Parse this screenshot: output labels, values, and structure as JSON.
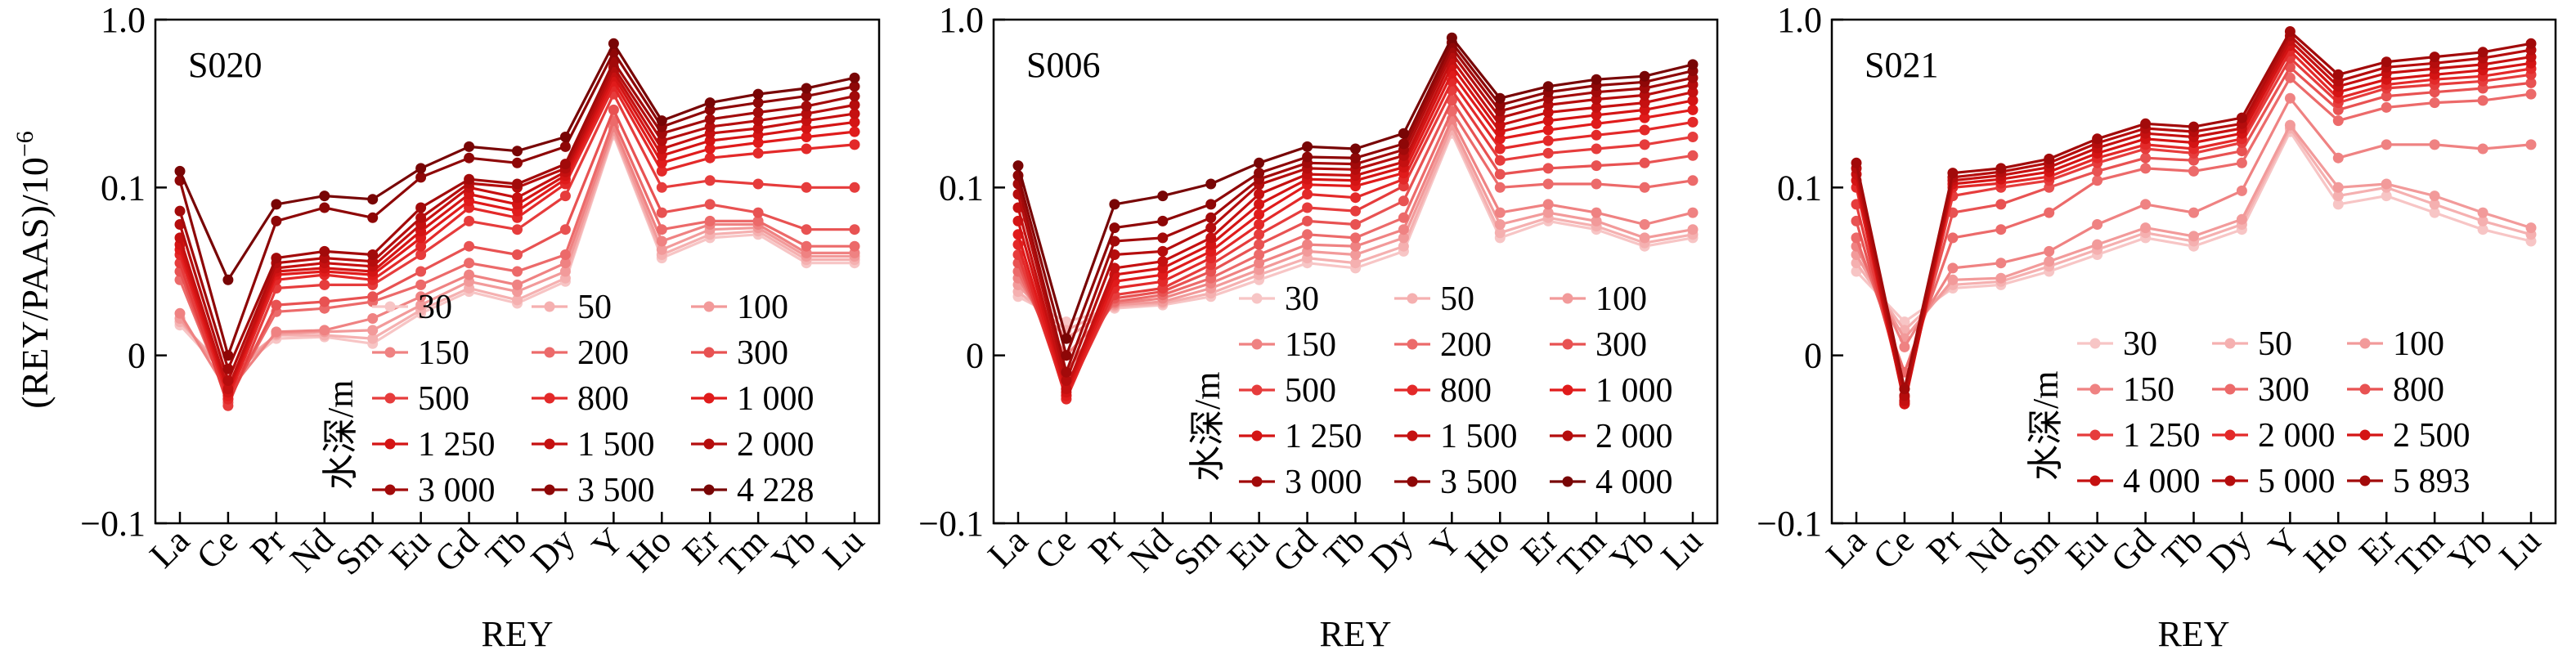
{
  "figure": {
    "ylabel": "(REY/PAAS)/10",
    "ylabel_exponent": "−6"
  },
  "chart_data": [
    {
      "type": "line",
      "panel_label": "S020",
      "xlabel": "REY",
      "categories": [
        "La",
        "Ce",
        "Pr",
        "Nd",
        "Sm",
        "Eu",
        "Gd",
        "Tb",
        "Dy",
        "Y",
        "Ho",
        "Er",
        "Tm",
        "Yb",
        "Lu"
      ],
      "yticks": [
        "1.0",
        "0.1",
        "0",
        "−0.1"
      ],
      "legend_title": "水深/m",
      "series": [
        {
          "name": "30",
          "color": "#f7c5c5",
          "values": [
            0.018,
            -0.013,
            0.01,
            0.011,
            0.007,
            0.025,
            0.038,
            0.031,
            0.044,
            0.205,
            0.058,
            0.07,
            0.072,
            0.055,
            0.055
          ]
        },
        {
          "name": "50",
          "color": "#f5b0b0",
          "values": [
            0.02,
            -0.01,
            0.012,
            0.012,
            0.01,
            0.027,
            0.04,
            0.033,
            0.046,
            0.21,
            0.06,
            0.072,
            0.074,
            0.057,
            0.057
          ]
        },
        {
          "name": "100",
          "color": "#f29a9a",
          "values": [
            0.022,
            -0.015,
            0.013,
            0.014,
            0.015,
            0.03,
            0.044,
            0.038,
            0.05,
            0.218,
            0.063,
            0.075,
            0.076,
            0.059,
            0.059
          ]
        },
        {
          "name": "150",
          "color": "#ef8282",
          "values": [
            0.025,
            -0.022,
            0.014,
            0.015,
            0.022,
            0.035,
            0.048,
            0.042,
            0.055,
            0.23,
            0.068,
            0.078,
            0.078,
            0.061,
            0.061
          ]
        },
        {
          "name": "200",
          "color": "#ec6a6a",
          "values": [
            0.045,
            -0.026,
            0.026,
            0.028,
            0.032,
            0.042,
            0.055,
            0.05,
            0.06,
            0.25,
            0.075,
            0.08,
            0.08,
            0.065,
            0.065
          ]
        },
        {
          "name": "300",
          "color": "#e85252",
          "values": [
            0.05,
            -0.028,
            0.03,
            0.032,
            0.035,
            0.05,
            0.065,
            0.06,
            0.075,
            0.29,
            0.085,
            0.09,
            0.085,
            0.075,
            0.075
          ]
        },
        {
          "name": "500",
          "color": "#e63c3c",
          "values": [
            0.055,
            -0.03,
            0.04,
            0.042,
            0.042,
            0.06,
            0.08,
            0.075,
            0.095,
            0.36,
            0.1,
            0.11,
            0.105,
            0.1,
            0.1
          ]
        },
        {
          "name": "800",
          "color": "#e32929",
          "values": [
            0.06,
            -0.026,
            0.045,
            0.048,
            0.045,
            0.065,
            0.088,
            0.082,
            0.105,
            0.4,
            0.125,
            0.15,
            0.16,
            0.17,
            0.18
          ]
        },
        {
          "name": "1 000",
          "color": "#e01b1b",
          "values": [
            0.063,
            -0.024,
            0.048,
            0.05,
            0.048,
            0.07,
            0.092,
            0.086,
            0.112,
            0.43,
            0.14,
            0.17,
            0.185,
            0.2,
            0.215
          ]
        },
        {
          "name": "1 250",
          "color": "#d41414",
          "values": [
            0.066,
            -0.022,
            0.05,
            0.052,
            0.05,
            0.074,
            0.096,
            0.09,
            0.118,
            0.46,
            0.155,
            0.19,
            0.205,
            0.225,
            0.245
          ]
        },
        {
          "name": "1 500",
          "color": "#c51010",
          "values": [
            0.07,
            -0.02,
            0.052,
            0.055,
            0.053,
            0.078,
            0.1,
            0.094,
            0.124,
            0.49,
            0.17,
            0.21,
            0.225,
            0.25,
            0.275
          ]
        },
        {
          "name": "2 000",
          "color": "#b50d0d",
          "values": [
            0.078,
            -0.015,
            0.055,
            0.058,
            0.056,
            0.082,
            0.106,
            0.1,
            0.13,
            0.52,
            0.19,
            0.23,
            0.25,
            0.275,
            0.31
          ]
        },
        {
          "name": "3 000",
          "color": "#a20a0a",
          "values": [
            0.086,
            -0.008,
            0.058,
            0.062,
            0.06,
            0.088,
            0.112,
            0.105,
            0.138,
            0.56,
            0.21,
            0.255,
            0.28,
            0.305,
            0.35
          ]
        },
        {
          "name": "3 500",
          "color": "#8e0707",
          "values": [
            0.11,
            0.0,
            0.08,
            0.088,
            0.082,
            0.115,
            0.15,
            0.14,
            0.175,
            0.64,
            0.23,
            0.29,
            0.32,
            0.35,
            0.4
          ]
        },
        {
          "name": "4 228",
          "color": "#780505",
          "values": [
            0.125,
            0.045,
            0.09,
            0.095,
            0.093,
            0.13,
            0.175,
            0.165,
            0.2,
            0.72,
            0.25,
            0.32,
            0.36,
            0.39,
            0.45
          ]
        }
      ]
    },
    {
      "type": "line",
      "panel_label": "S006",
      "xlabel": "REY",
      "categories": [
        "La",
        "Ce",
        "Pr",
        "Nd",
        "Sm",
        "Eu",
        "Gd",
        "Tb",
        "Dy",
        "Y",
        "Ho",
        "Er",
        "Tm",
        "Yb",
        "Lu"
      ],
      "yticks": [
        "1.0",
        "0.1",
        "0",
        "−0.1"
      ],
      "legend_title": "水深/m",
      "series": [
        {
          "name": "30",
          "color": "#f7c5c5",
          "values": [
            0.035,
            0.02,
            0.028,
            0.03,
            0.035,
            0.045,
            0.055,
            0.052,
            0.062,
            0.21,
            0.07,
            0.08,
            0.075,
            0.065,
            0.07
          ]
        },
        {
          "name": "50",
          "color": "#f5b0b0",
          "values": [
            0.038,
            0.015,
            0.029,
            0.031,
            0.037,
            0.048,
            0.058,
            0.055,
            0.065,
            0.22,
            0.073,
            0.082,
            0.077,
            0.067,
            0.072
          ]
        },
        {
          "name": "100",
          "color": "#f29a9a",
          "values": [
            0.042,
            0.01,
            0.03,
            0.032,
            0.04,
            0.051,
            0.062,
            0.06,
            0.07,
            0.235,
            0.078,
            0.085,
            0.08,
            0.07,
            0.075
          ]
        },
        {
          "name": "150",
          "color": "#ef8282",
          "values": [
            0.046,
            0.0,
            0.031,
            0.034,
            0.043,
            0.055,
            0.066,
            0.065,
            0.075,
            0.255,
            0.085,
            0.09,
            0.085,
            0.078,
            0.085
          ]
        },
        {
          "name": "200",
          "color": "#ec6a6a",
          "values": [
            0.05,
            -0.01,
            0.032,
            0.036,
            0.046,
            0.06,
            0.072,
            0.07,
            0.082,
            0.285,
            0.1,
            0.105,
            0.105,
            0.1,
            0.11
          ]
        },
        {
          "name": "300",
          "color": "#e85252",
          "values": [
            0.055,
            -0.018,
            0.034,
            0.038,
            0.05,
            0.066,
            0.08,
            0.078,
            0.092,
            0.33,
            0.12,
            0.13,
            0.135,
            0.14,
            0.155
          ]
        },
        {
          "name": "500",
          "color": "#e63c3c",
          "values": [
            0.06,
            -0.024,
            0.036,
            0.04,
            0.054,
            0.072,
            0.088,
            0.086,
            0.102,
            0.38,
            0.145,
            0.16,
            0.17,
            0.18,
            0.2
          ]
        },
        {
          "name": "800",
          "color": "#e32929",
          "values": [
            0.066,
            -0.026,
            0.04,
            0.044,
            0.058,
            0.078,
            0.096,
            0.094,
            0.112,
            0.43,
            0.17,
            0.19,
            0.205,
            0.22,
            0.245
          ]
        },
        {
          "name": "1 000",
          "color": "#e01b1b",
          "values": [
            0.072,
            -0.024,
            0.044,
            0.048,
            0.062,
            0.084,
            0.104,
            0.102,
            0.122,
            0.48,
            0.195,
            0.22,
            0.24,
            0.26,
            0.29
          ]
        },
        {
          "name": "1 250",
          "color": "#d41414",
          "values": [
            0.08,
            -0.022,
            0.048,
            0.052,
            0.066,
            0.09,
            0.112,
            0.11,
            0.132,
            0.53,
            0.215,
            0.25,
            0.27,
            0.29,
            0.33
          ]
        },
        {
          "name": "1 500",
          "color": "#c51010",
          "values": [
            0.088,
            -0.02,
            0.052,
            0.056,
            0.07,
            0.096,
            0.12,
            0.118,
            0.142,
            0.58,
            0.235,
            0.28,
            0.3,
            0.32,
            0.37
          ]
        },
        {
          "name": "2 000",
          "color": "#b50d0d",
          "values": [
            0.096,
            -0.015,
            0.06,
            0.062,
            0.076,
            0.104,
            0.13,
            0.128,
            0.155,
            0.63,
            0.26,
            0.31,
            0.335,
            0.355,
            0.41
          ]
        },
        {
          "name": "3 000",
          "color": "#a20a0a",
          "values": [
            0.105,
            -0.01,
            0.068,
            0.07,
            0.082,
            0.112,
            0.14,
            0.138,
            0.168,
            0.68,
            0.285,
            0.34,
            0.37,
            0.39,
            0.45
          ]
        },
        {
          "name": "3 500",
          "color": "#8e0707",
          "values": [
            0.118,
            0.0,
            0.076,
            0.08,
            0.09,
            0.122,
            0.152,
            0.15,
            0.182,
            0.73,
            0.31,
            0.37,
            0.405,
            0.425,
            0.495
          ]
        },
        {
          "name": "4 000",
          "color": "#780505",
          "values": [
            0.135,
            0.01,
            0.09,
            0.095,
            0.105,
            0.14,
            0.175,
            0.17,
            0.21,
            0.78,
            0.34,
            0.4,
            0.44,
            0.46,
            0.54
          ]
        }
      ]
    },
    {
      "type": "line",
      "panel_label": "S021",
      "xlabel": "REY",
      "categories": [
        "La",
        "Ce",
        "Pr",
        "Nd",
        "Sm",
        "Eu",
        "Gd",
        "Tb",
        "Dy",
        "Y",
        "Ho",
        "Er",
        "Tm",
        "Yb",
        "Lu"
      ],
      "yticks": [
        "1.0",
        "0.1",
        "0",
        "−0.1"
      ],
      "legend_title": "水深/m",
      "series": [
        {
          "name": "30",
          "color": "#f7c5c5",
          "values": [
            0.05,
            0.02,
            0.04,
            0.042,
            0.05,
            0.06,
            0.07,
            0.065,
            0.075,
            0.215,
            0.09,
            0.095,
            0.085,
            0.075,
            0.068
          ]
        },
        {
          "name": "50",
          "color": "#f5b0b0",
          "values": [
            0.055,
            0.015,
            0.042,
            0.044,
            0.053,
            0.063,
            0.073,
            0.068,
            0.078,
            0.225,
            0.095,
            0.1,
            0.09,
            0.08,
            0.072
          ]
        },
        {
          "name": "100",
          "color": "#f29a9a",
          "values": [
            0.06,
            0.01,
            0.045,
            0.046,
            0.056,
            0.066,
            0.076,
            0.071,
            0.081,
            0.235,
            0.1,
            0.105,
            0.095,
            0.085,
            0.076
          ]
        },
        {
          "name": "150",
          "color": "#ef8282",
          "values": [
            0.065,
            0.005,
            0.052,
            0.055,
            0.062,
            0.078,
            0.09,
            0.085,
            0.098,
            0.34,
            0.15,
            0.18,
            0.18,
            0.17,
            0.18
          ]
        },
        {
          "name": "300",
          "color": "#ec6a6a",
          "values": [
            0.07,
            -0.01,
            0.07,
            0.075,
            0.085,
            0.11,
            0.13,
            0.125,
            0.14,
            0.45,
            0.25,
            0.3,
            0.32,
            0.33,
            0.36
          ]
        },
        {
          "name": "800",
          "color": "#e85252",
          "values": [
            0.08,
            -0.02,
            0.085,
            0.09,
            0.1,
            0.125,
            0.15,
            0.145,
            0.165,
            0.52,
            0.29,
            0.35,
            0.37,
            0.39,
            0.42
          ]
        },
        {
          "name": "1 250",
          "color": "#e63c3c",
          "values": [
            0.09,
            -0.025,
            0.095,
            0.1,
            0.11,
            0.14,
            0.17,
            0.16,
            0.185,
            0.59,
            0.32,
            0.39,
            0.41,
            0.43,
            0.47
          ]
        },
        {
          "name": "2 000",
          "color": "#e32929",
          "values": [
            0.1,
            -0.028,
            0.1,
            0.106,
            0.116,
            0.15,
            0.18,
            0.17,
            0.195,
            0.65,
            0.34,
            0.41,
            0.44,
            0.46,
            0.51
          ]
        },
        {
          "name": "2 500",
          "color": "#d41414",
          "values": [
            0.11,
            -0.029,
            0.105,
            0.112,
            0.124,
            0.16,
            0.195,
            0.185,
            0.21,
            0.7,
            0.37,
            0.44,
            0.47,
            0.5,
            0.55
          ]
        },
        {
          "name": "4 000",
          "color": "#c51010",
          "values": [
            0.12,
            -0.027,
            0.11,
            0.118,
            0.132,
            0.172,
            0.21,
            0.2,
            0.225,
            0.75,
            0.4,
            0.48,
            0.51,
            0.54,
            0.6
          ]
        },
        {
          "name": "5 000",
          "color": "#b50d0d",
          "values": [
            0.13,
            -0.024,
            0.115,
            0.124,
            0.14,
            0.184,
            0.225,
            0.215,
            0.24,
            0.8,
            0.43,
            0.52,
            0.55,
            0.59,
            0.66
          ]
        },
        {
          "name": "5 893",
          "color": "#a20a0a",
          "values": [
            0.14,
            -0.02,
            0.122,
            0.13,
            0.148,
            0.195,
            0.24,
            0.23,
            0.26,
            0.85,
            0.47,
            0.56,
            0.6,
            0.64,
            0.72
          ]
        }
      ]
    }
  ]
}
